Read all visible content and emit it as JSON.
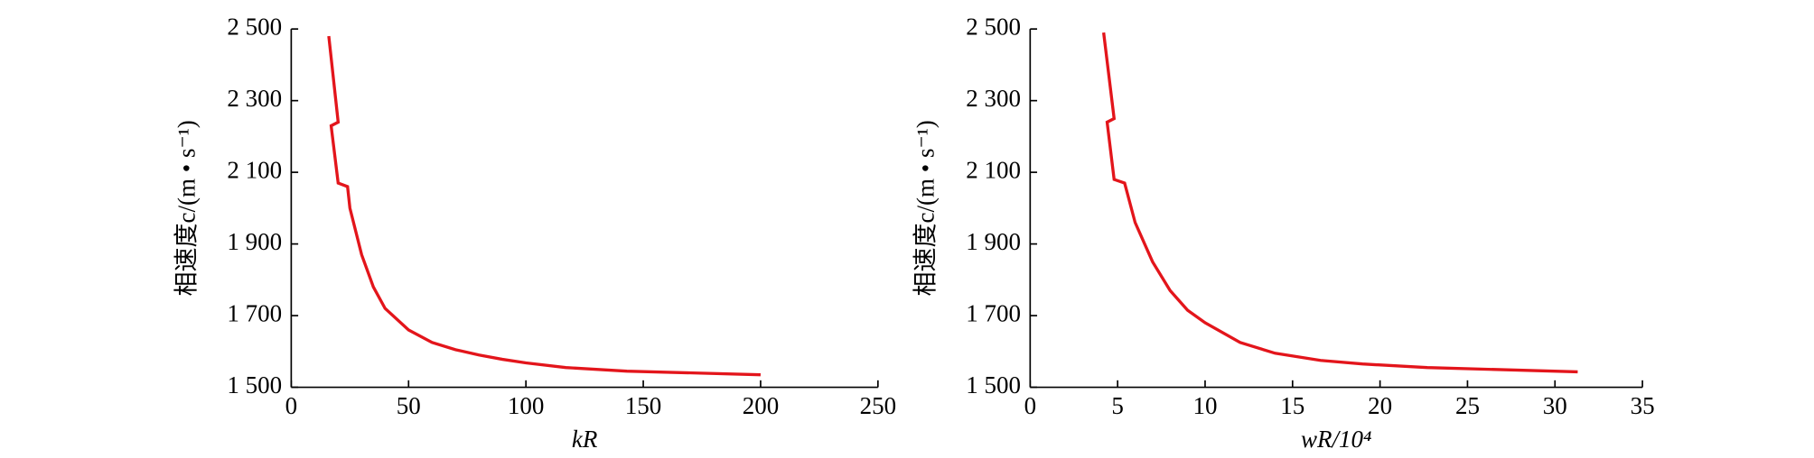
{
  "chart_data": [
    {
      "type": "line",
      "x_label": "kR",
      "y_label": "相速度c/(m • s⁻¹)",
      "xlim": [
        0,
        250
      ],
      "xticks": [
        0,
        50,
        100,
        150,
        200,
        250
      ],
      "ylim": [
        1500,
        2500
      ],
      "yticks": [
        {
          "value": 1500,
          "label": "1 500"
        },
        {
          "value": 1700,
          "label": "1 700"
        },
        {
          "value": 1900,
          "label": "1 900"
        },
        {
          "value": 2100,
          "label": "2 100"
        },
        {
          "value": 2300,
          "label": "2 300"
        },
        {
          "value": 2500,
          "label": "2 500"
        }
      ],
      "series": [
        {
          "color": "#e3151b",
          "x": [
            16,
            20,
            17,
            20,
            24,
            25,
            30,
            35,
            40,
            50,
            60,
            70,
            80,
            90,
            100,
            117,
            143,
            200
          ],
          "values": [
            2480,
            2240,
            2230,
            2070,
            2060,
            2000,
            1870,
            1780,
            1720,
            1660,
            1625,
            1605,
            1590,
            1578,
            1568,
            1555,
            1545,
            1535
          ]
        }
      ]
    },
    {
      "type": "line",
      "x_label": "wR/10⁴",
      "y_label": "相速度c/(m • s⁻¹)",
      "xlim": [
        0,
        35
      ],
      "xticks": [
        0,
        5,
        10,
        15,
        20,
        25,
        30,
        35
      ],
      "ylim": [
        1500,
        2500
      ],
      "yticks": [
        {
          "value": 1500,
          "label": "1 500"
        },
        {
          "value": 1700,
          "label": "1 700"
        },
        {
          "value": 1900,
          "label": "1 900"
        },
        {
          "value": 2100,
          "label": "2 100"
        },
        {
          "value": 2300,
          "label": "2 300"
        },
        {
          "value": 2500,
          "label": "2 500"
        }
      ],
      "series": [
        {
          "color": "#e3151b",
          "x": [
            4.2,
            4.8,
            4.4,
            4.8,
            5.4,
            6,
            7,
            8,
            9,
            10,
            12,
            14,
            16.6,
            19,
            22.7,
            31.3
          ],
          "values": [
            2490,
            2250,
            2240,
            2080,
            2070,
            1960,
            1850,
            1770,
            1715,
            1680,
            1625,
            1595,
            1575,
            1565,
            1555,
            1543
          ]
        }
      ]
    }
  ]
}
